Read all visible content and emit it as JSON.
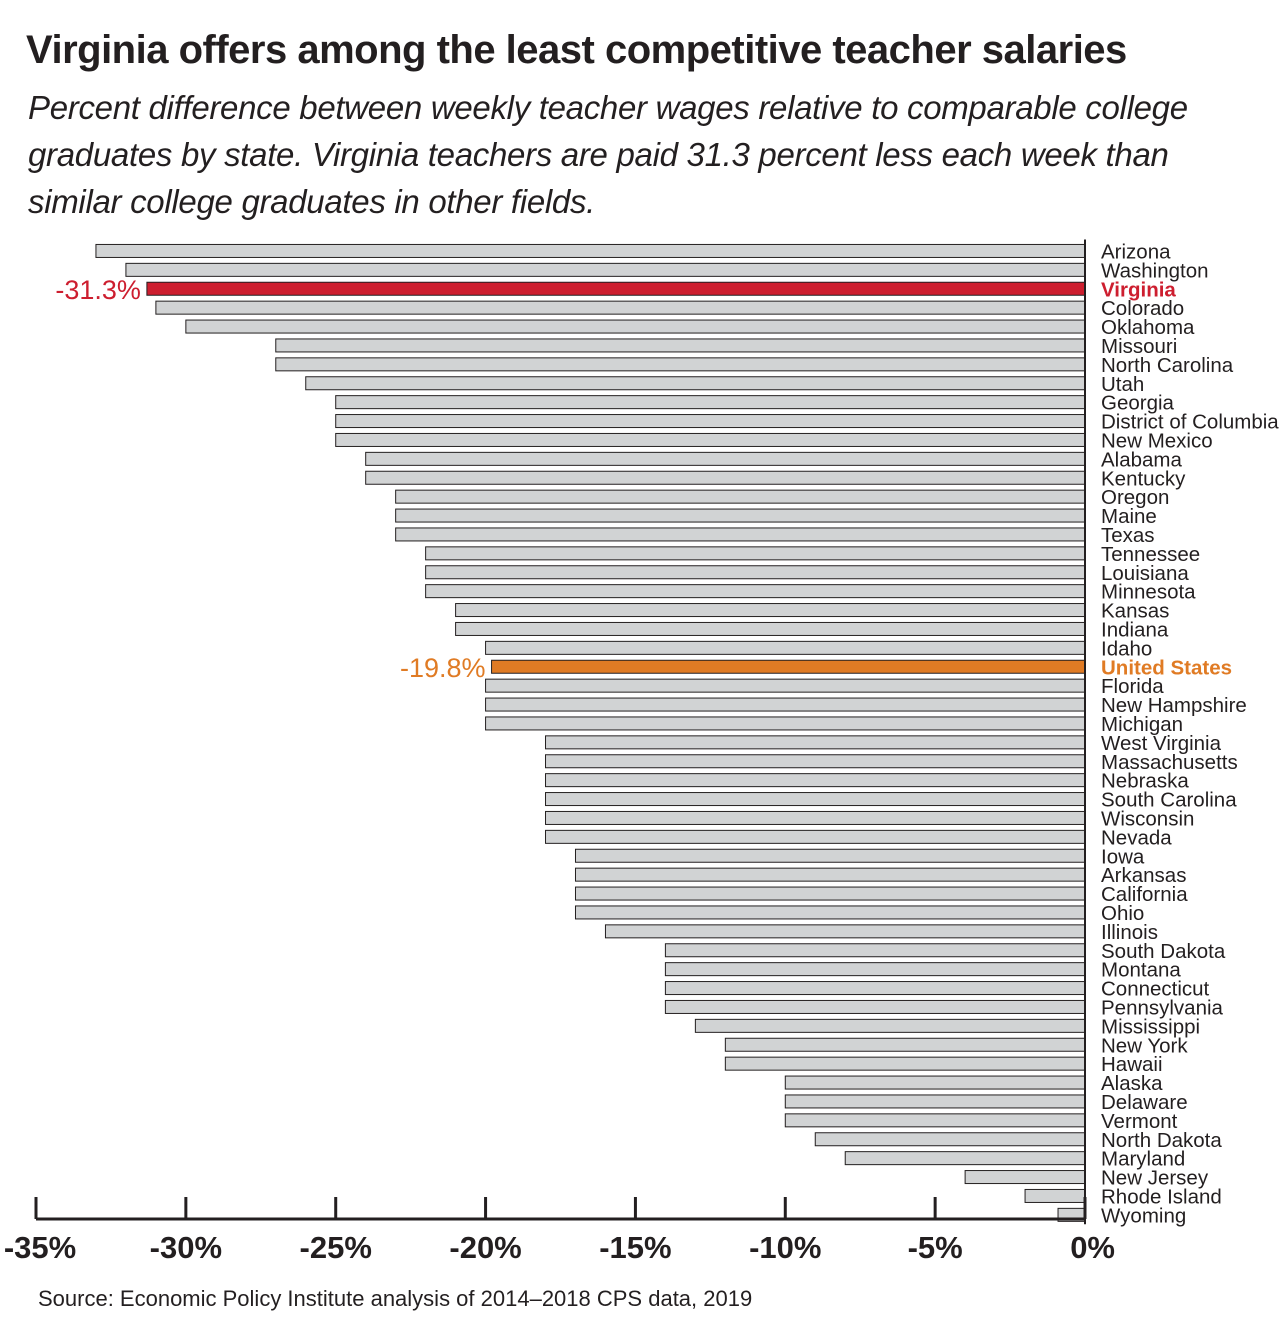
{
  "chart_data": {
    "type": "bar",
    "orientation": "horizontal",
    "title": "Virginia offers among the least competitive teacher salaries",
    "subtitle": "Percent difference between weekly teacher wages relative to comparable college graduates by state. Virginia teachers are paid 31.3 percent less each week than similar college graduates in other fields.",
    "source": "Source: Economic Policy Institute analysis of 2014–2018 CPS data, 2019",
    "xlim": [
      -35,
      0
    ],
    "x_ticks": [
      {
        "value": -35,
        "label": "-35%"
      },
      {
        "value": -30,
        "label": "-30%"
      },
      {
        "value": -25,
        "label": "-25%"
      },
      {
        "value": -20,
        "label": "-20%"
      },
      {
        "value": -15,
        "label": "-15%"
      },
      {
        "value": -10,
        "label": "-10%"
      },
      {
        "value": -5,
        "label": "-5%"
      },
      {
        "value": 0,
        "label": "0%"
      }
    ],
    "grid": false,
    "colors": {
      "default": "#d1d3d4",
      "outline": "#231f20",
      "virginia": "#cd1e2f",
      "united_states": "#e07b24",
      "text": "#231f20"
    },
    "bars": [
      {
        "label": "Arizona",
        "value": -33.0
      },
      {
        "label": "Washington",
        "value": -32.0
      },
      {
        "label": "Virginia",
        "value": -31.3,
        "highlight": "virginia",
        "data_label": "-31.3%"
      },
      {
        "label": "Colorado",
        "value": -31.0
      },
      {
        "label": "Oklahoma",
        "value": -30.0
      },
      {
        "label": "Missouri",
        "value": -27.0
      },
      {
        "label": "North Carolina",
        "value": -27.0
      },
      {
        "label": "Utah",
        "value": -26.0
      },
      {
        "label": "Georgia",
        "value": -25.0
      },
      {
        "label": "District of Columbia",
        "value": -25.0
      },
      {
        "label": "New Mexico",
        "value": -25.0
      },
      {
        "label": "Alabama",
        "value": -24.0
      },
      {
        "label": "Kentucky",
        "value": -24.0
      },
      {
        "label": "Oregon",
        "value": -23.0
      },
      {
        "label": "Maine",
        "value": -23.0
      },
      {
        "label": "Texas",
        "value": -23.0
      },
      {
        "label": "Tennessee",
        "value": -22.0
      },
      {
        "label": "Louisiana",
        "value": -22.0
      },
      {
        "label": "Minnesota",
        "value": -22.0
      },
      {
        "label": "Kansas",
        "value": -21.0
      },
      {
        "label": "Indiana",
        "value": -21.0
      },
      {
        "label": "Idaho",
        "value": -20.0
      },
      {
        "label": "United States",
        "value": -19.8,
        "highlight": "united_states",
        "data_label": "-19.8%"
      },
      {
        "label": "Florida",
        "value": -20.0
      },
      {
        "label": "New Hampshire",
        "value": -20.0
      },
      {
        "label": "Michigan",
        "value": -20.0
      },
      {
        "label": "West Virginia",
        "value": -18.0
      },
      {
        "label": "Massachusetts",
        "value": -18.0
      },
      {
        "label": "Nebraska",
        "value": -18.0
      },
      {
        "label": "South Carolina",
        "value": -18.0
      },
      {
        "label": "Wisconsin",
        "value": -18.0
      },
      {
        "label": "Nevada",
        "value": -18.0
      },
      {
        "label": "Iowa",
        "value": -17.0
      },
      {
        "label": "Arkansas",
        "value": -17.0
      },
      {
        "label": "California",
        "value": -17.0
      },
      {
        "label": "Ohio",
        "value": -17.0
      },
      {
        "label": "Illinois",
        "value": -16.0
      },
      {
        "label": "South Dakota",
        "value": -14.0
      },
      {
        "label": "Montana",
        "value": -14.0
      },
      {
        "label": "Connecticut",
        "value": -14.0
      },
      {
        "label": "Pennsylvania",
        "value": -14.0
      },
      {
        "label": "Mississippi",
        "value": -13.0
      },
      {
        "label": "New York",
        "value": -12.0
      },
      {
        "label": "Hawaii",
        "value": -12.0
      },
      {
        "label": "Alaska",
        "value": -10.0
      },
      {
        "label": "Delaware",
        "value": -10.0
      },
      {
        "label": "Vermont",
        "value": -10.0
      },
      {
        "label": "North Dakota",
        "value": -9.0
      },
      {
        "label": "Maryland",
        "value": -8.0
      },
      {
        "label": "New Jersey",
        "value": -4.0
      },
      {
        "label": "Rhode Island",
        "value": -2.0
      },
      {
        "label": "Wyoming",
        "value": -0.9
      }
    ]
  }
}
